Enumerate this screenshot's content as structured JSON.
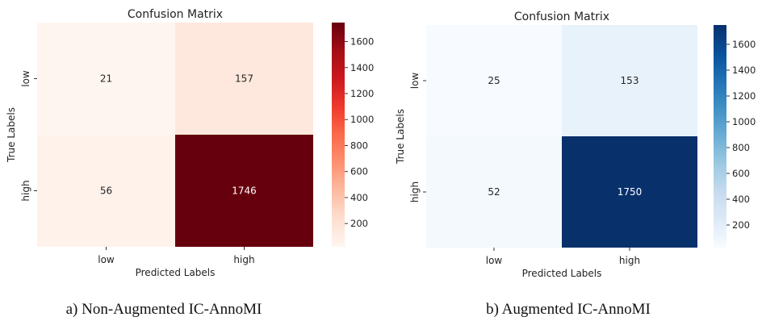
{
  "chart_data": [
    {
      "type": "heatmap",
      "title": "Confusion Matrix",
      "xlabel": "Predicted Labels",
      "ylabel": "True Labels",
      "x_categories": [
        "low",
        "high"
      ],
      "y_categories": [
        "low",
        "high"
      ],
      "values": [
        [
          21,
          157
        ],
        [
          56,
          1746
        ]
      ],
      "colormap": "Reds",
      "color_low": "#fff5f0",
      "color_high": "#67000d",
      "colorbar_ticks": [
        200,
        400,
        600,
        800,
        1000,
        1200,
        1400,
        1600
      ],
      "colorbar_range": [
        21,
        1746
      ],
      "caption": "a) Non-Augmented IC-AnnoMI"
    },
    {
      "type": "heatmap",
      "title": "Confusion Matrix",
      "xlabel": "Predicted Labels",
      "ylabel": "True Labels",
      "x_categories": [
        "low",
        "high"
      ],
      "y_categories": [
        "low",
        "high"
      ],
      "values": [
        [
          25,
          153
        ],
        [
          52,
          1750
        ]
      ],
      "colormap": "Blues",
      "color_low": "#f7fbff",
      "color_high": "#08306b",
      "colorbar_ticks": [
        200,
        400,
        600,
        800,
        1000,
        1200,
        1400,
        1600
      ],
      "colorbar_range": [
        25,
        1750
      ],
      "caption": "b) Augmented IC-AnnoMI"
    }
  ]
}
